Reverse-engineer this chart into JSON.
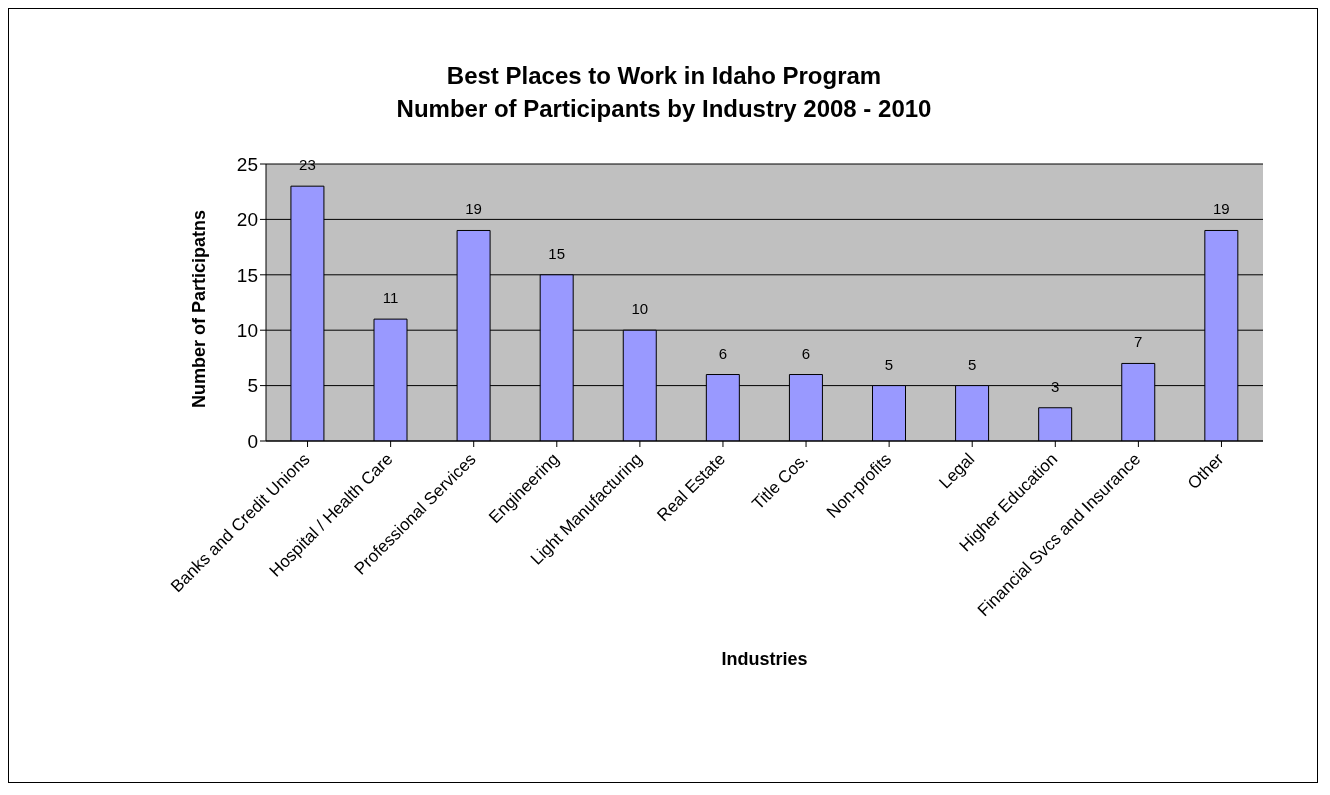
{
  "chart_data": {
    "type": "bar",
    "title": "Best Places to Work in Idaho Program\nNumber of Participants by Industry 2008 - 2010",
    "xlabel": "Industries",
    "ylabel": "Number of Participatns",
    "categories": [
      "Banks and Credit Unions",
      "Hospital / Health Care",
      "Professional Services",
      "Engineering",
      "Light Manufacturing",
      "Real Estate",
      "Title Cos.",
      "Non-profits",
      "Legal",
      "Higher Education",
      "Financial Svcs and Insurance",
      "Other"
    ],
    "values": [
      23,
      11,
      19,
      15,
      10,
      6,
      6,
      5,
      5,
      3,
      7,
      19
    ],
    "color": "#9999ff",
    "ylim": [
      0,
      25
    ],
    "yticks": [
      0,
      5,
      10,
      15,
      20,
      25
    ],
    "grid": "y",
    "data_labels": true
  }
}
